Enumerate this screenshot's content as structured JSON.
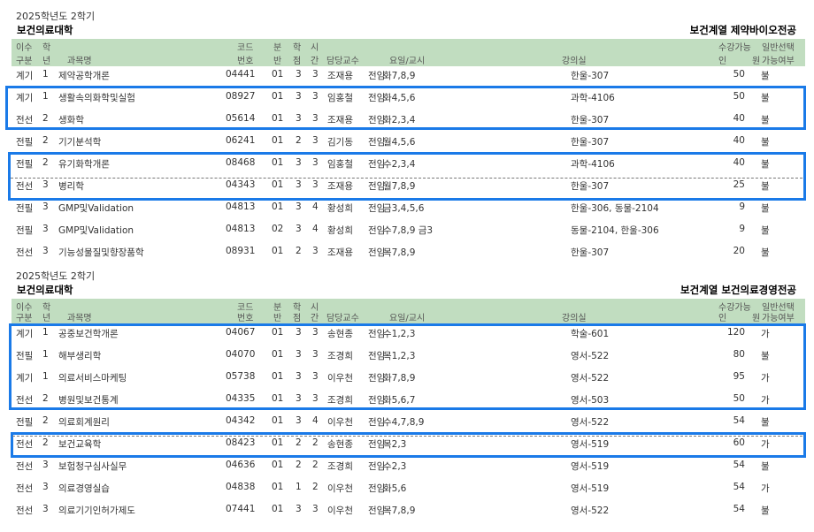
{
  "sections": [
    {
      "term": "2025학년도 2학기",
      "college": "보건의료대학",
      "major": "보건계열  제약바이오전공",
      "headers": {
        "type1": "이수",
        "type2": "구분",
        "year1": "학",
        "year2": "년",
        "name": "과목명",
        "code1": "코드",
        "code2": "번호",
        "cls1": "분",
        "cls2": "반",
        "credit1": "학",
        "credit2": "점",
        "hours1": "시",
        "hours2": "간",
        "prof": "담당교수",
        "time": "요일/교시",
        "room": "강의실",
        "cap1": "수강가능",
        "cap2a": "인",
        "cap2b": "원",
        "gen1": "일반선택",
        "gen2": "가능여부"
      },
      "rows": [
        {
          "type": "계기",
          "year": "1",
          "name": "제약공학개론",
          "code": "04441",
          "cls": "01",
          "credit": "3",
          "hours": "3",
          "prof": "조재용",
          "status": "전임",
          "time": "화7,8,9",
          "room": "한울-307",
          "cap": "50",
          "gen": "불"
        },
        {
          "type": "계기",
          "year": "1",
          "name": "생활속의화학및실험",
          "code": "08927",
          "cls": "01",
          "credit": "3",
          "hours": "3",
          "prof": "임홍철",
          "status": "전임",
          "time": "화4,5,6",
          "room": "과학-4106",
          "cap": "50",
          "gen": "불"
        },
        {
          "type": "전선",
          "year": "2",
          "name": "생화학",
          "code": "05614",
          "cls": "01",
          "credit": "3",
          "hours": "3",
          "prof": "조재용",
          "status": "전임",
          "time": "화2,3,4",
          "room": "한울-307",
          "cap": "40",
          "gen": "불"
        },
        {
          "type": "전필",
          "year": "2",
          "name": "기기분석학",
          "code": "06241",
          "cls": "01",
          "credit": "2",
          "hours": "3",
          "prof": "김기동",
          "status": "전임",
          "time": "월4,5,6",
          "room": "한울-307",
          "cap": "40",
          "gen": "불"
        },
        {
          "type": "전필",
          "year": "2",
          "name": "유기화학개론",
          "code": "08468",
          "cls": "01",
          "credit": "3",
          "hours": "3",
          "prof": "임홍철",
          "status": "전임",
          "time": "수2,3,4",
          "room": "과학-4106",
          "cap": "40",
          "gen": "불"
        },
        {
          "type": "전선",
          "year": "3",
          "name": "병리학",
          "code": "04343",
          "cls": "01",
          "credit": "3",
          "hours": "3",
          "prof": "조재용",
          "status": "전임",
          "time": "월7,8,9",
          "room": "한울-307",
          "cap": "25",
          "gen": "불"
        },
        {
          "type": "전필",
          "year": "3",
          "name": "GMP및Validation",
          "code": "04813",
          "cls": "01",
          "credit": "3",
          "hours": "4",
          "prof": "황성희",
          "status": "전임",
          "time": "금3,4,5,6",
          "room": "한울-306, 동물-2104",
          "cap": "9",
          "gen": "불"
        },
        {
          "type": "전필",
          "year": "3",
          "name": "GMP및Validation",
          "code": "04813",
          "cls": "02",
          "credit": "3",
          "hours": "4",
          "prof": "황성희",
          "status": "전임",
          "time": "수7,8,9 금3",
          "room": "동물-2104, 한울-306",
          "cap": "9",
          "gen": "불"
        },
        {
          "type": "전선",
          "year": "3",
          "name": "기능성물질및향장품학",
          "code": "08931",
          "cls": "01",
          "credit": "2",
          "hours": "3",
          "prof": "조재용",
          "status": "전임",
          "time": "목7,8,9",
          "room": "한울-307",
          "cap": "20",
          "gen": "불"
        }
      ]
    },
    {
      "term": "2025학년도 2학기",
      "college": "보건의료대학",
      "major": "보건계열  보건의료경영전공",
      "headers": {
        "type1": "이수",
        "type2": "구분",
        "year1": "학",
        "year2": "년",
        "name": "과목명",
        "code1": "코드",
        "code2": "번호",
        "cls1": "분",
        "cls2": "반",
        "credit1": "학",
        "credit2": "점",
        "hours1": "시",
        "hours2": "간",
        "prof": "담당교수",
        "time": "요일/교시",
        "room": "강의실",
        "cap1": "수강가능",
        "cap2a": "인",
        "cap2b": "원",
        "gen1": "일반선택",
        "gen2": "가능여부"
      },
      "rows": [
        {
          "type": "계기",
          "year": "1",
          "name": "공중보건학개론",
          "code": "04067",
          "cls": "01",
          "credit": "3",
          "hours": "3",
          "prof": "송현종",
          "status": "전임",
          "time": "수1,2,3",
          "room": "학술-601",
          "cap": "120",
          "gen": "가"
        },
        {
          "type": "전필",
          "year": "1",
          "name": "해부생리학",
          "code": "04070",
          "cls": "01",
          "credit": "3",
          "hours": "3",
          "prof": "조경희",
          "status": "전임",
          "time": "목1,2,3",
          "room": "영서-522",
          "cap": "80",
          "gen": "불"
        },
        {
          "type": "계기",
          "year": "1",
          "name": "의료서비스마케팅",
          "code": "05738",
          "cls": "01",
          "credit": "3",
          "hours": "3",
          "prof": "이우천",
          "status": "전임",
          "time": "화7,8,9",
          "room": "영서-522",
          "cap": "95",
          "gen": "가"
        },
        {
          "type": "전선",
          "year": "2",
          "name": "병원및보건통계",
          "code": "04335",
          "cls": "01",
          "credit": "3",
          "hours": "3",
          "prof": "조경희",
          "status": "전임",
          "time": "화5,6,7",
          "room": "영서-503",
          "cap": "50",
          "gen": "가"
        },
        {
          "type": "전필",
          "year": "2",
          "name": "의료회계원리",
          "code": "04342",
          "cls": "01",
          "credit": "3",
          "hours": "4",
          "prof": "이우천",
          "status": "전임",
          "time": "수4,7,8,9",
          "room": "영서-522",
          "cap": "54",
          "gen": "불"
        },
        {
          "type": "전선",
          "year": "2",
          "name": "보건교육학",
          "code": "08423",
          "cls": "01",
          "credit": "2",
          "hours": "2",
          "prof": "송현종",
          "status": "전임",
          "time": "목2,3",
          "room": "영서-519",
          "cap": "60",
          "gen": "가"
        },
        {
          "type": "전선",
          "year": "3",
          "name": "보험청구심사실무",
          "code": "04636",
          "cls": "01",
          "credit": "2",
          "hours": "2",
          "prof": "조경희",
          "status": "전임",
          "time": "수2,3",
          "room": "영서-519",
          "cap": "54",
          "gen": "불"
        },
        {
          "type": "전선",
          "year": "3",
          "name": "의료경영실습",
          "code": "04838",
          "cls": "01",
          "credit": "1",
          "hours": "2",
          "prof": "이우천",
          "status": "전임",
          "time": "화5,6",
          "room": "영서-519",
          "cap": "54",
          "gen": "가"
        },
        {
          "type": "전선",
          "year": "3",
          "name": "의료기기인허가제도",
          "code": "07441",
          "cls": "01",
          "credit": "3",
          "hours": "3",
          "prof": "이우천",
          "status": "전임",
          "time": "목7,8,9",
          "room": "영서-522",
          "cap": "54",
          "gen": "불"
        }
      ]
    }
  ],
  "colors": {
    "header_bg": "#c1ddc0",
    "highlight_border": "#1a7ae8"
  }
}
